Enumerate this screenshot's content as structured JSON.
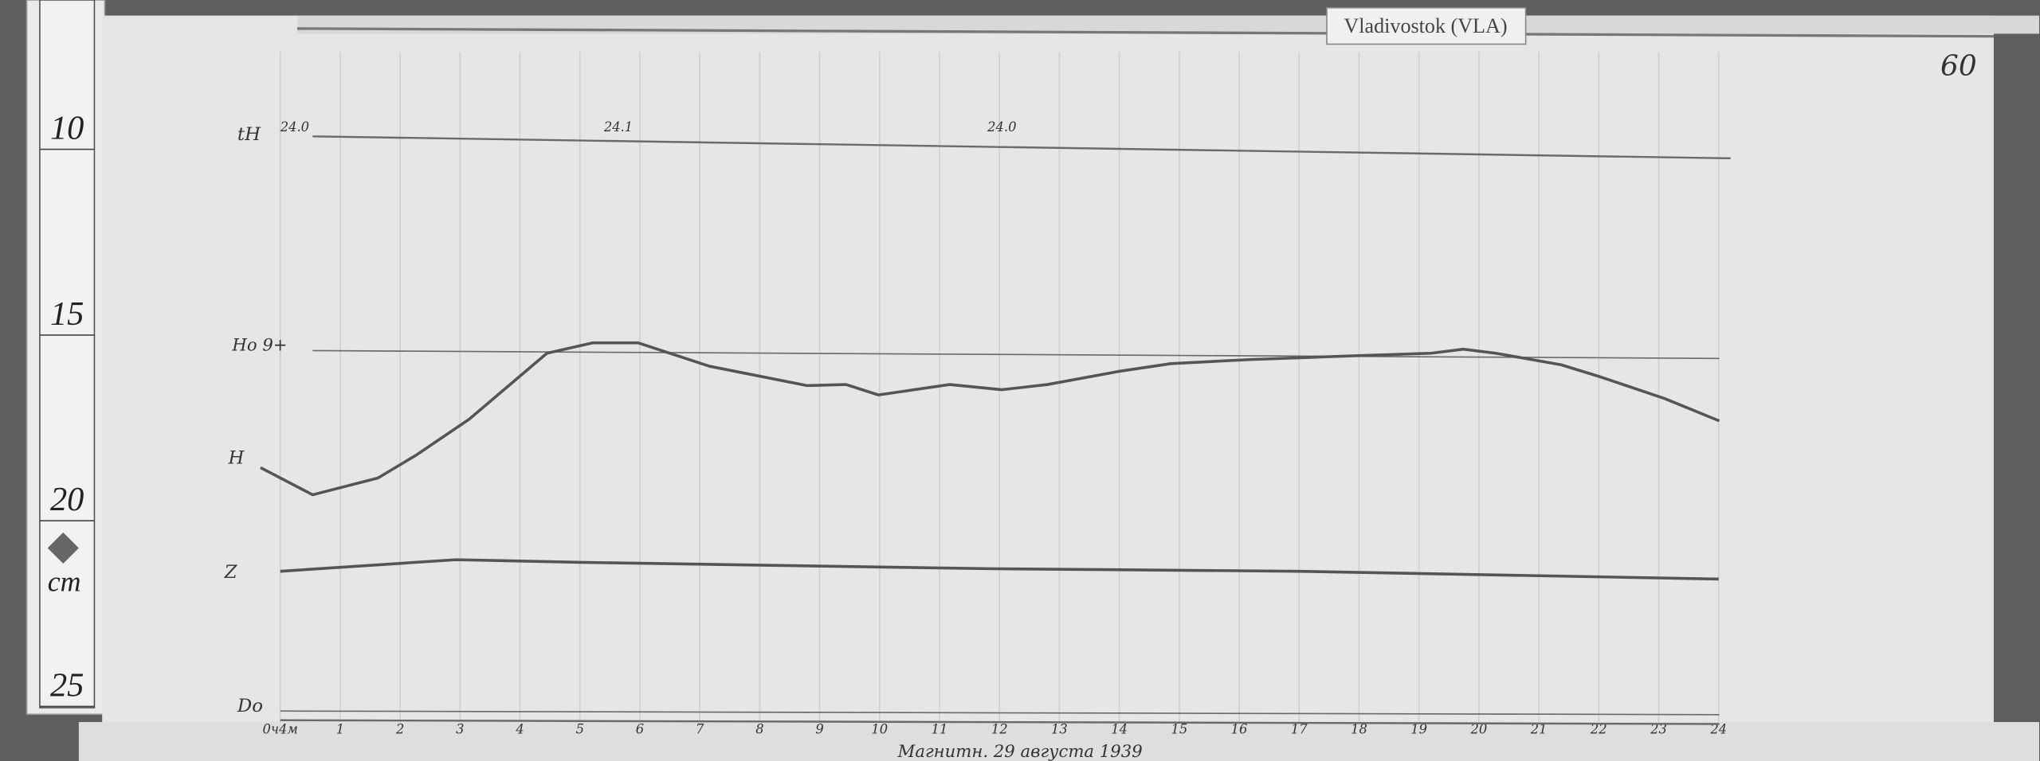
{
  "station_label": "Vladivostok (VLA)",
  "page_number": "60",
  "footer_note": "Магнитн. 29 августа 1939",
  "ruler": {
    "unit": "cm",
    "ticks": [
      "10",
      "15",
      "20",
      "25"
    ],
    "tick_values": [
      10,
      15,
      20,
      25
    ]
  },
  "colors": {
    "paper": "#e6e6e6",
    "trace": "#555555",
    "baseline": "#6a6a6a",
    "background": "#5a5a5a"
  },
  "chart_data": {
    "type": "line",
    "xlabel": "",
    "ylabel": "",
    "x_unit_note": "hours",
    "xlim": [
      0,
      24
    ],
    "ylim_cm_on_ruler": [
      8,
      26
    ],
    "grid": true,
    "hour_labels": [
      "0ч4м",
      "1",
      "2",
      "3",
      "4",
      "5",
      "6",
      "7",
      "8",
      "9",
      "10",
      "11",
      "12",
      "13",
      "14",
      "15",
      "16",
      "17",
      "18",
      "19",
      "20",
      "21",
      "22",
      "23",
      "24"
    ],
    "series": [
      {
        "name": "H",
        "points": [
          [
            -0.33,
            19.2
          ],
          [
            0.54,
            19.93
          ],
          [
            1.63,
            19.48
          ],
          [
            2.28,
            18.85
          ],
          [
            3.15,
            17.9
          ],
          [
            4.45,
            16.12
          ],
          [
            5.21,
            15.84
          ],
          [
            5.97,
            15.84
          ],
          [
            7.16,
            16.47
          ],
          [
            8.79,
            16.99
          ],
          [
            9.44,
            16.96
          ],
          [
            9.98,
            17.24
          ],
          [
            11.17,
            16.96
          ],
          [
            12.04,
            17.1
          ],
          [
            12.8,
            16.96
          ],
          [
            13.99,
            16.61
          ],
          [
            14.86,
            16.4
          ],
          [
            16.16,
            16.29
          ],
          [
            17.9,
            16.19
          ],
          [
            19.2,
            16.12
          ],
          [
            19.74,
            16.01
          ],
          [
            20.28,
            16.12
          ],
          [
            21.37,
            16.43
          ],
          [
            22.02,
            16.75
          ],
          [
            23.1,
            17.34
          ],
          [
            24.01,
            17.94
          ]
        ]
      },
      {
        "name": "Z",
        "points": [
          [
            0,
            21.99
          ],
          [
            2.93,
            21.68
          ],
          [
            5.1,
            21.75
          ],
          [
            11.8,
            21.92
          ],
          [
            17,
            21.99
          ],
          [
            24,
            22.2
          ]
        ]
      }
    ],
    "baselines": [
      {
        "name": "tH",
        "points": [
          [
            0.54,
            10.28
          ],
          [
            24.2,
            10.87
          ]
        ],
        "annotations": [
          {
            "hour": 0,
            "text": "24.0"
          },
          {
            "hour": 5.4,
            "text": "24.1"
          },
          {
            "hour": 11.8,
            "text": "24.0"
          }
        ]
      },
      {
        "name": "Ho",
        "label": "Ho 9+",
        "points": [
          [
            0.54,
            16.05
          ],
          [
            24.01,
            16.26
          ]
        ]
      },
      {
        "name": "Do",
        "points": [
          [
            0,
            25.75
          ],
          [
            24.01,
            25.85
          ]
        ]
      }
    ]
  }
}
